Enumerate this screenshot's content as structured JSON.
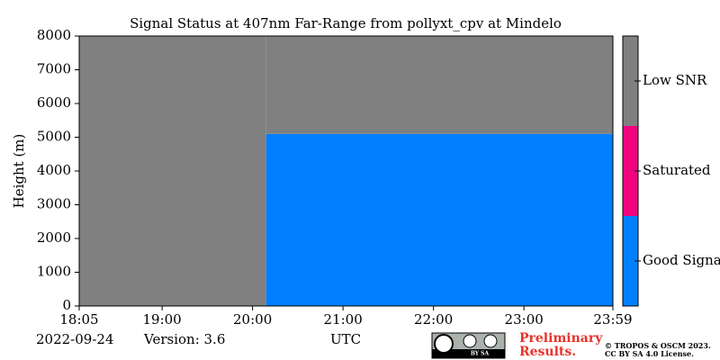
{
  "chart_data": {
    "type": "heatmap",
    "title": "Signal Status at 407nm Far-Range from pollyxt_cpv at Mindelo",
    "y_label": "Height (m)",
    "x_label": "UTC",
    "xlim": [
      1085,
      1439
    ],
    "xticks": [
      {
        "value": 1085,
        "label": "18:05"
      },
      {
        "value": 1140,
        "label": "19:00"
      },
      {
        "value": 1200,
        "label": "20:00"
      },
      {
        "value": 1260,
        "label": "21:00"
      },
      {
        "value": 1320,
        "label": "22:00"
      },
      {
        "value": 1380,
        "label": "23:00"
      },
      {
        "value": 1439,
        "label": "23:59"
      }
    ],
    "ylim": [
      0,
      8000
    ],
    "yticks": [
      0,
      1000,
      2000,
      3000,
      4000,
      5000,
      6000,
      7000,
      8000
    ],
    "categories": [
      "Good Signal",
      "Saturated",
      "Low SNR"
    ],
    "colors": [
      "#0080ff",
      "#f0047f",
      "#808080"
    ],
    "blocks": [
      {
        "status": 2,
        "x": [
          1085,
          1209
        ],
        "y": [
          0,
          8000
        ]
      },
      {
        "status": 0,
        "x": [
          1209,
          1439
        ],
        "y": [
          0,
          5100
        ]
      },
      {
        "status": 2,
        "x": [
          1209,
          1439
        ],
        "y": [
          5100,
          8000
        ]
      }
    ]
  },
  "footer": {
    "date": "2022-09-24",
    "version": "Version: 3.6",
    "license_badge": "BY SA",
    "preliminary": [
      "Preliminary",
      "Results."
    ],
    "copyright": [
      "© TROPOS & OSCM 2023.",
      "CC BY SA 4.0 License."
    ]
  }
}
